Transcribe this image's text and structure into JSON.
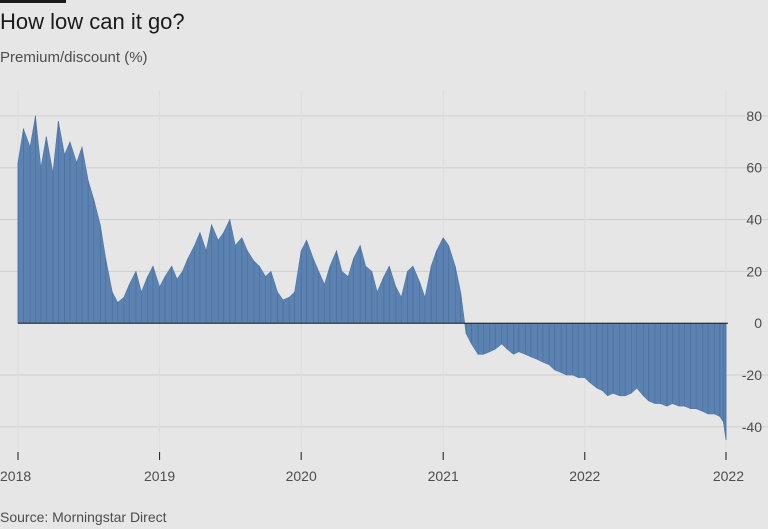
{
  "title": "How low can it go?",
  "subtitle": "Premium/discount (%)",
  "source": "Source: Morningstar Direct",
  "colors": {
    "background": "#e6e6e6",
    "bar": "#5b82b0",
    "grid": "#cfcfcf",
    "zero_line": "#1a1a1a",
    "text": "#4d4d4d"
  },
  "chart_data": {
    "type": "area",
    "title": "How low can it go?",
    "ylabel": "Premium/discount (%)",
    "ylim": [
      -47,
      90
    ],
    "grid": true,
    "y_ticks": [
      80,
      60,
      40,
      20,
      0,
      -20,
      -40
    ],
    "y_tick_labels": [
      "80",
      "60",
      "40",
      "20",
      "0",
      "-20",
      "-40"
    ],
    "x_tick_values": [
      "2018-01-01",
      "2019-01-01",
      "2020-01-01",
      "2021-01-01",
      "2022-01-01",
      "2022-12-31"
    ],
    "x_tick_labels": [
      "2018",
      "2019",
      "2020",
      "2021",
      "2022",
      "2022"
    ],
    "xlim": [
      "2018-01-01",
      "2022-12-31"
    ],
    "series": [
      {
        "x": [
          "2018-01-01",
          "2018-01-15",
          "2018-02-01",
          "2018-02-15",
          "2018-03-01",
          "2018-03-15",
          "2018-04-01",
          "2018-04-15",
          "2018-05-01",
          "2018-05-15",
          "2018-06-01",
          "2018-06-15",
          "2018-07-01",
          "2018-07-15",
          "2018-08-01",
          "2018-08-15",
          "2018-09-01",
          "2018-09-15",
          "2018-10-01",
          "2018-10-15",
          "2018-11-01",
          "2018-11-15",
          "2018-12-01",
          "2018-12-15",
          "2019-01-01",
          "2019-01-15",
          "2019-02-01",
          "2019-02-15",
          "2019-03-01",
          "2019-03-15",
          "2019-04-01",
          "2019-04-15",
          "2019-05-01",
          "2019-05-15",
          "2019-06-01",
          "2019-06-15",
          "2019-07-01",
          "2019-07-15",
          "2019-08-01",
          "2019-08-15",
          "2019-09-01",
          "2019-09-15",
          "2019-10-01",
          "2019-10-15",
          "2019-11-01",
          "2019-11-15",
          "2019-12-01",
          "2019-12-15",
          "2020-01-01",
          "2020-01-15",
          "2020-02-01",
          "2020-02-15",
          "2020-03-01",
          "2020-03-15",
          "2020-04-01",
          "2020-04-15",
          "2020-05-01",
          "2020-05-15",
          "2020-06-01",
          "2020-06-15",
          "2020-07-01",
          "2020-07-15",
          "2020-08-01",
          "2020-08-15",
          "2020-09-01",
          "2020-09-15",
          "2020-10-01",
          "2020-10-15",
          "2020-11-01",
          "2020-11-15",
          "2020-12-01",
          "2020-12-15",
          "2021-01-01",
          "2021-01-15",
          "2021-02-01",
          "2021-02-15",
          "2021-03-01",
          "2021-03-15",
          "2021-04-01",
          "2021-04-15",
          "2021-05-01",
          "2021-05-15",
          "2021-06-01",
          "2021-06-15",
          "2021-07-01",
          "2021-07-15",
          "2021-08-01",
          "2021-08-15",
          "2021-09-01",
          "2021-09-15",
          "2021-10-01",
          "2021-10-15",
          "2021-11-01",
          "2021-11-15",
          "2021-12-01",
          "2021-12-15",
          "2022-01-01",
          "2022-01-15",
          "2022-02-01",
          "2022-02-15",
          "2022-03-01",
          "2022-03-15",
          "2022-04-01",
          "2022-04-15",
          "2022-05-01",
          "2022-05-15",
          "2022-06-01",
          "2022-06-15",
          "2022-07-01",
          "2022-07-15",
          "2022-08-01",
          "2022-08-15",
          "2022-09-01",
          "2022-09-15",
          "2022-10-01",
          "2022-10-15",
          "2022-11-01",
          "2022-11-15",
          "2022-12-01",
          "2022-12-15",
          "2022-12-24",
          "2022-12-31"
        ],
        "y": [
          62,
          75,
          68,
          80,
          60,
          72,
          58,
          78,
          65,
          70,
          62,
          68,
          55,
          48,
          38,
          25,
          12,
          8,
          10,
          15,
          20,
          12,
          18,
          22,
          14,
          18,
          22,
          17,
          20,
          25,
          30,
          35,
          28,
          38,
          32,
          35,
          40,
          30,
          33,
          28,
          24,
          22,
          18,
          20,
          12,
          9,
          10,
          12,
          28,
          32,
          25,
          20,
          15,
          22,
          28,
          20,
          18,
          25,
          30,
          22,
          20,
          12,
          18,
          22,
          14,
          10,
          20,
          22,
          16,
          10,
          22,
          28,
          33,
          30,
          22,
          12,
          -4,
          -8,
          -12,
          -12,
          -11,
          -10,
          -8,
          -10,
          -12,
          -11,
          -12,
          -13,
          -14,
          -15,
          -16,
          -18,
          -19,
          -20,
          -20,
          -21,
          -21,
          -23,
          -25,
          -26,
          -28,
          -27,
          -28,
          -28,
          -27,
          -25,
          -28,
          -30,
          -31,
          -31,
          -32,
          -31,
          -32,
          -32,
          -33,
          -33,
          -34,
          -35,
          -35,
          -36,
          -38,
          -45
        ]
      }
    ]
  }
}
